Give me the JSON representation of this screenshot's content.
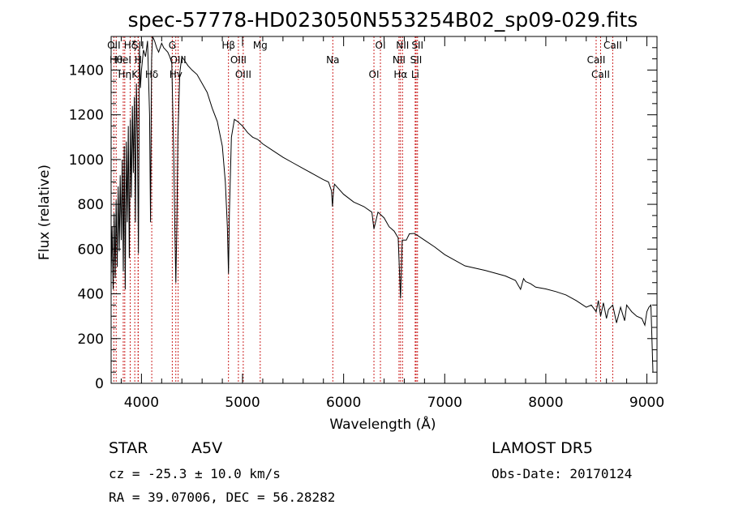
{
  "chart_data": {
    "type": "line",
    "title": "spec-57778-HD023050N553254B02_sp09-029.fits",
    "xlabel": "Wavelength (Å)",
    "ylabel": "Flux (relative)",
    "xlim": [
      3700,
      9100
    ],
    "ylim": [
      0,
      1550
    ],
    "xticks": [
      "4000",
      "5000",
      "6000",
      "7000",
      "8000",
      "9000"
    ],
    "yticks": [
      "0",
      "200",
      "400",
      "600",
      "800",
      "1000",
      "1200",
      "1400"
    ],
    "grid": false,
    "legend": "none",
    "series": [
      {
        "x": [
          3700,
          3710,
          3720,
          3730,
          3740,
          3750,
          3760,
          3770,
          3780,
          3790,
          3800,
          3810,
          3820,
          3830,
          3840,
          3850,
          3860,
          3870,
          3880,
          3890,
          3900,
          3910,
          3920,
          3930,
          3940,
          3950,
          3960,
          3970,
          3980,
          3990,
          4000,
          4020,
          4040,
          4060,
          4080,
          4090,
          4100,
          4110,
          4130,
          4150,
          4170,
          4200,
          4220,
          4240,
          4260,
          4280,
          4300,
          4320,
          4330,
          4340,
          4350,
          4360,
          4380,
          4400,
          4430,
          4460,
          4500,
          4550,
          4600,
          4650,
          4700,
          4750,
          4800,
          4830,
          4850,
          4861,
          4870,
          4890,
          4920,
          4950,
          5000,
          5050,
          5100,
          5150,
          5200,
          5300,
          5400,
          5500,
          5600,
          5700,
          5800,
          5850,
          5880,
          5890,
          5900,
          5910,
          5950,
          6000,
          6100,
          6200,
          6280,
          6300,
          6340,
          6400,
          6450,
          6500,
          6540,
          6563,
          6580,
          6620,
          6650,
          6700,
          6750,
          6800,
          6900,
          7000,
          7200,
          7400,
          7600,
          7700,
          7750,
          7780,
          7800,
          7850,
          7900,
          8000,
          8100,
          8200,
          8300,
          8400,
          8450,
          8498,
          8520,
          8542,
          8570,
          8600,
          8620,
          8662,
          8700,
          8740,
          8780,
          8800,
          8850,
          8900,
          8950,
          8980,
          9000,
          9020,
          9040,
          9060
        ],
        "values": [
          480,
          700,
          420,
          760,
          470,
          820,
          520,
          880,
          590,
          930,
          640,
          1000,
          500,
          1060,
          420,
          1080,
          720,
          1150,
          560,
          1180,
          830,
          1240,
          940,
          1280,
          720,
          1340,
          1100,
          580,
          1500,
          1320,
          1400,
          1490,
          1460,
          1530,
          1200,
          720,
          1450,
          1560,
          1530,
          1500,
          1480,
          1520,
          1500,
          1490,
          1480,
          1460,
          1430,
          1000,
          700,
          450,
          700,
          1100,
          1390,
          1460,
          1440,
          1420,
          1400,
          1380,
          1340,
          1300,
          1230,
          1170,
          1060,
          900,
          700,
          490,
          760,
          1100,
          1180,
          1170,
          1150,
          1120,
          1100,
          1090,
          1070,
          1040,
          1010,
          985,
          960,
          935,
          910,
          900,
          860,
          790,
          860,
          890,
          870,
          845,
          810,
          790,
          765,
          690,
          765,
          740,
          700,
          680,
          650,
          380,
          640,
          640,
          668,
          670,
          655,
          640,
          610,
          575,
          525,
          505,
          480,
          460,
          420,
          468,
          455,
          445,
          430,
          422,
          410,
          395,
          370,
          340,
          350,
          320,
          370,
          300,
          360,
          290,
          330,
          350,
          270,
          340,
          280,
          350,
          320,
          300,
          290,
          260,
          320,
          340,
          350,
          50
        ]
      }
    ],
    "annotations": [
      {
        "label": "OII",
        "x": 3727
      },
      {
        "label": "Hθ",
        "x": 3750
      },
      {
        "label": "Hη",
        "x": 3835
      },
      {
        "label": "Hζ",
        "x": 3889
      },
      {
        "label": "HeI",
        "x": 3820
      },
      {
        "label": "K",
        "x": 3934
      },
      {
        "label": "SII",
        "x": 3967
      },
      {
        "label": "H",
        "x": 3968
      },
      {
        "label": "Hδ",
        "x": 4102
      },
      {
        "label": "G",
        "x": 4305
      },
      {
        "label": "OIII",
        "x": 4363
      },
      {
        "label": "Hγ",
        "x": 4340
      },
      {
        "label": "Hβ",
        "x": 4861
      },
      {
        "label": "OIII",
        "x": 4959
      },
      {
        "label": "OIII",
        "x": 5007
      },
      {
        "label": "Mg",
        "x": 5175
      },
      {
        "label": "Na",
        "x": 5893
      },
      {
        "label": "OI",
        "x": 6300
      },
      {
        "label": "OI",
        "x": 6364
      },
      {
        "label": "NII",
        "x": 6548
      },
      {
        "label": "Hα",
        "x": 6563
      },
      {
        "label": "NII",
        "x": 6583
      },
      {
        "label": "SII",
        "x": 6717
      },
      {
        "label": "Li",
        "x": 6708
      },
      {
        "label": "SII",
        "x": 6731
      },
      {
        "label": "CaII",
        "x": 8498
      },
      {
        "label": "CaII",
        "x": 8542
      },
      {
        "label": "CaII",
        "x": 8662
      }
    ]
  },
  "info": {
    "object_class": "STAR",
    "subclass": "A5V",
    "survey": "LAMOST DR5",
    "redshift": "cz = -25.3 ± 10.0 km/s",
    "obs_date": "Obs-Date: 20170124",
    "coords": "RA =  39.07006, DEC =  56.28282"
  },
  "colors": {
    "spectrum": "#000000",
    "line_markers": "#cc2222",
    "axes": "#000000",
    "background": "#ffffff"
  }
}
